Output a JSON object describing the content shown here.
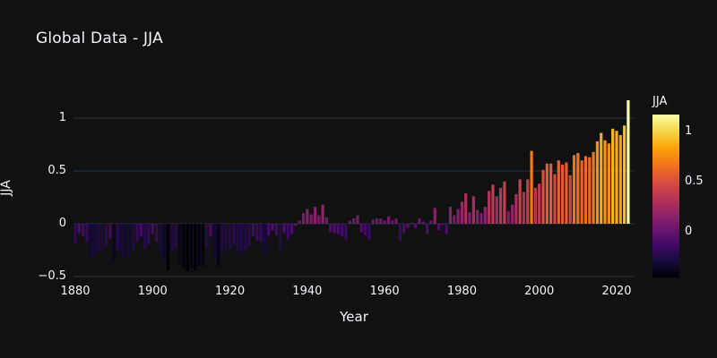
{
  "window": {
    "background": "#111111"
  },
  "header": {
    "title": "Global Data - JJA"
  },
  "axes": {
    "y_label": "JJA",
    "x_label": "Year",
    "y_tick_labels": [
      "−0.5",
      "0",
      "0.5",
      "1"
    ],
    "x_tick_labels": [
      "1880",
      "1900",
      "1920",
      "1940",
      "1960",
      "1980",
      "2000",
      "2020"
    ]
  },
  "colorbar": {
    "title": "JJA",
    "tick_labels": {
      "t1": "1",
      "t05": "0.5",
      "t0": "0"
    }
  },
  "theme": {
    "background": "#111111",
    "text_color": "#f2f5fa",
    "grid_color": "#283442",
    "zeroline_color": "#283442",
    "colormap_name": "inferno",
    "colormap_stops": [
      "#000004",
      "#160b39",
      "#420a68",
      "#6a176e",
      "#932667",
      "#bc3754",
      "#dd513a",
      "#f37819",
      "#fca50a",
      "#f6d746",
      "#fcffa4"
    ]
  },
  "chart_data": {
    "type": "bar",
    "title": "Global Data - JJA",
    "xlabel": "Year",
    "ylabel": "JJA",
    "legend_position": "none",
    "grid": true,
    "xlim": [
      1878.5,
      2024.5
    ],
    "ylim": [
      -0.52,
      1.2
    ],
    "xticks": [
      1880,
      1900,
      1920,
      1940,
      1960,
      1980,
      2000,
      2020
    ],
    "yticks": [
      -0.5,
      0,
      0.5,
      1
    ],
    "color_scale": {
      "name": "inferno",
      "cmin": -0.45,
      "cmax": 1.17,
      "bar_title": "JJA",
      "bar_ticks": [
        0,
        0.5,
        1
      ]
    },
    "x": [
      1880,
      1881,
      1882,
      1883,
      1884,
      1885,
      1886,
      1887,
      1888,
      1889,
      1890,
      1891,
      1892,
      1893,
      1894,
      1895,
      1896,
      1897,
      1898,
      1899,
      1900,
      1901,
      1902,
      1903,
      1904,
      1905,
      1906,
      1907,
      1908,
      1909,
      1910,
      1911,
      1912,
      1913,
      1914,
      1915,
      1916,
      1917,
      1918,
      1919,
      1920,
      1921,
      1922,
      1923,
      1924,
      1925,
      1926,
      1927,
      1928,
      1929,
      1930,
      1931,
      1932,
      1933,
      1934,
      1935,
      1936,
      1937,
      1938,
      1939,
      1940,
      1941,
      1942,
      1943,
      1944,
      1945,
      1946,
      1947,
      1948,
      1949,
      1950,
      1951,
      1952,
      1953,
      1954,
      1955,
      1956,
      1957,
      1958,
      1959,
      1960,
      1961,
      1962,
      1963,
      1964,
      1965,
      1966,
      1967,
      1968,
      1969,
      1970,
      1971,
      1972,
      1973,
      1974,
      1975,
      1976,
      1977,
      1978,
      1979,
      1980,
      1981,
      1982,
      1983,
      1984,
      1985,
      1986,
      1987,
      1988,
      1989,
      1990,
      1991,
      1992,
      1993,
      1994,
      1995,
      1996,
      1997,
      1998,
      1999,
      2000,
      2001,
      2002,
      2003,
      2004,
      2005,
      2006,
      2007,
      2008,
      2009,
      2010,
      2011,
      2012,
      2013,
      2014,
      2015,
      2016,
      2017,
      2018,
      2019,
      2020,
      2021,
      2022,
      2023
    ],
    "values": [
      -0.18,
      -0.09,
      -0.12,
      -0.17,
      -0.32,
      -0.3,
      -0.27,
      -0.26,
      -0.21,
      -0.14,
      -0.36,
      -0.24,
      -0.3,
      -0.32,
      -0.31,
      -0.25,
      -0.17,
      -0.12,
      -0.24,
      -0.19,
      -0.1,
      -0.17,
      -0.28,
      -0.34,
      -0.44,
      -0.27,
      -0.23,
      -0.38,
      -0.42,
      -0.45,
      -0.42,
      -0.44,
      -0.4,
      -0.4,
      -0.23,
      -0.12,
      -0.32,
      -0.4,
      -0.27,
      -0.26,
      -0.24,
      -0.2,
      -0.26,
      -0.26,
      -0.25,
      -0.21,
      -0.12,
      -0.16,
      -0.17,
      -0.29,
      -0.11,
      -0.06,
      -0.11,
      -0.24,
      -0.09,
      -0.15,
      -0.1,
      -0.02,
      0.03,
      0.1,
      0.14,
      0.09,
      0.16,
      0.08,
      0.18,
      0.06,
      -0.08,
      -0.09,
      -0.1,
      -0.12,
      -0.15,
      0.03,
      0.05,
      0.08,
      -0.08,
      -0.11,
      -0.15,
      0.04,
      0.05,
      0.05,
      0.03,
      0.07,
      0.03,
      0.05,
      -0.16,
      -0.09,
      -0.04,
      0.01,
      -0.04,
      0.05,
      0.02,
      -0.1,
      0.03,
      0.15,
      -0.06,
      -0.01,
      -0.1,
      0.16,
      0.08,
      0.14,
      0.21,
      0.29,
      0.11,
      0.26,
      0.13,
      0.1,
      0.16,
      0.31,
      0.37,
      0.26,
      0.34,
      0.4,
      0.12,
      0.18,
      0.28,
      0.42,
      0.3,
      0.42,
      0.69,
      0.34,
      0.38,
      0.51,
      0.57,
      0.57,
      0.47,
      0.6,
      0.56,
      0.58,
      0.46,
      0.65,
      0.67,
      0.6,
      0.64,
      0.63,
      0.68,
      0.78,
      0.86,
      0.79,
      0.76,
      0.9,
      0.88,
      0.84,
      0.93,
      1.17
    ]
  }
}
